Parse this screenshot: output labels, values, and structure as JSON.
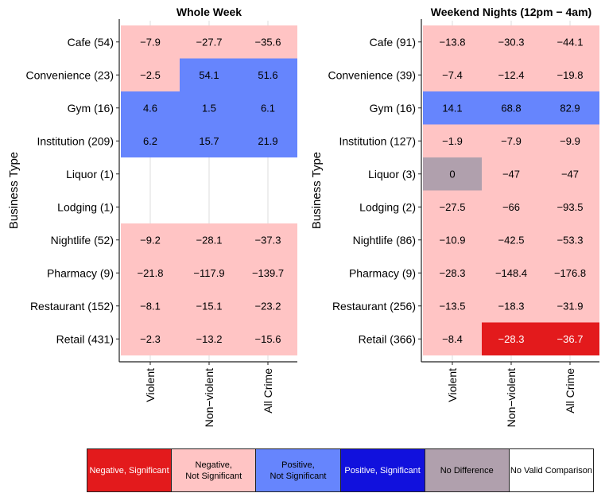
{
  "chart_data": [
    {
      "type": "heatmap",
      "title": "Whole Week",
      "ylabel": "Business Type",
      "xlabel": "",
      "x_categories": [
        "Violent",
        "Non−violent",
        "All Crime"
      ],
      "y_categories": [
        "Cafe (54)",
        "Convenience (23)",
        "Gym (16)",
        "Institution (209)",
        "Liquor (1)",
        "Lodging (1)",
        "Nightlife (52)",
        "Pharmacy (9)",
        "Restaurant (152)",
        "Retail (431)"
      ],
      "values": [
        [
          "−7.9",
          "−27.7",
          "−35.6"
        ],
        [
          "−2.5",
          "54.1",
          "51.6"
        ],
        [
          "4.6",
          "1.5",
          "6.1"
        ],
        [
          "6.2",
          "15.7",
          "21.9"
        ],
        [
          null,
          null,
          null
        ],
        [
          null,
          null,
          null
        ],
        [
          "−9.2",
          "−28.1",
          "−37.3"
        ],
        [
          "−21.8",
          "−117.9",
          "−139.7"
        ],
        [
          "−8.1",
          "−15.1",
          "−23.2"
        ],
        [
          "−2.3",
          "−13.2",
          "−15.6"
        ]
      ],
      "categories": [
        [
          "neg_ns",
          "neg_ns",
          "neg_ns"
        ],
        [
          "neg_ns",
          "pos_ns",
          "pos_ns"
        ],
        [
          "pos_ns",
          "pos_ns",
          "pos_ns"
        ],
        [
          "pos_ns",
          "pos_ns",
          "pos_ns"
        ],
        [
          "none",
          "none",
          "none"
        ],
        [
          "none",
          "none",
          "none"
        ],
        [
          "neg_ns",
          "neg_ns",
          "neg_ns"
        ],
        [
          "neg_ns",
          "neg_ns",
          "neg_ns"
        ],
        [
          "neg_ns",
          "neg_ns",
          "neg_ns"
        ],
        [
          "neg_ns",
          "neg_ns",
          "neg_ns"
        ]
      ]
    },
    {
      "type": "heatmap",
      "title": "Weekend Nights (12pm − 4am)",
      "ylabel": "Business Type",
      "xlabel": "",
      "x_categories": [
        "Violent",
        "Non−violent",
        "All Crime"
      ],
      "y_categories": [
        "Cafe (91)",
        "Convenience (39)",
        "Gym (16)",
        "Institution (127)",
        "Liquor (3)",
        "Lodging (2)",
        "Nightlife (86)",
        "Pharmacy (9)",
        "Restaurant (256)",
        "Retail (366)"
      ],
      "values": [
        [
          "−13.8",
          "−30.3",
          "−44.1"
        ],
        [
          "−7.4",
          "−12.4",
          "−19.8"
        ],
        [
          "14.1",
          "68.8",
          "82.9"
        ],
        [
          "−1.9",
          "−7.9",
          "−9.9"
        ],
        [
          "0",
          "−47",
          "−47"
        ],
        [
          "−27.5",
          "−66",
          "−93.5"
        ],
        [
          "−10.9",
          "−42.5",
          "−53.3"
        ],
        [
          "−28.3",
          "−148.4",
          "−176.8"
        ],
        [
          "−13.5",
          "−18.3",
          "−31.9"
        ],
        [
          "−8.4",
          "−28.3",
          "−36.7"
        ]
      ],
      "categories": [
        [
          "neg_ns",
          "neg_ns",
          "neg_ns"
        ],
        [
          "neg_ns",
          "neg_ns",
          "neg_ns"
        ],
        [
          "pos_ns",
          "pos_ns",
          "pos_ns"
        ],
        [
          "neg_ns",
          "neg_ns",
          "neg_ns"
        ],
        [
          "nodiff",
          "neg_ns",
          "neg_ns"
        ],
        [
          "neg_ns",
          "neg_ns",
          "neg_ns"
        ],
        [
          "neg_ns",
          "neg_ns",
          "neg_ns"
        ],
        [
          "neg_ns",
          "neg_ns",
          "neg_ns"
        ],
        [
          "neg_ns",
          "neg_ns",
          "neg_ns"
        ],
        [
          "neg_ns",
          "neg_sig",
          "neg_sig"
        ]
      ]
    }
  ],
  "legend": [
    {
      "key": "neg_sig",
      "label": "Negative, Significant",
      "color": "#e31a1c",
      "text_color": "#ffffff"
    },
    {
      "key": "neg_ns",
      "label": "Negative,\nNot Significant",
      "color": "#ffc4c4",
      "text_color": "#000000"
    },
    {
      "key": "pos_ns",
      "label": "Positive,\nNot Significant",
      "color": "#6685fd",
      "text_color": "#000000"
    },
    {
      "key": "pos_sig",
      "label": "Positive, Significant",
      "color": "#1111dd",
      "text_color": "#ffffff"
    },
    {
      "key": "nodiff",
      "label": "No Difference",
      "color": "#b0a0ad",
      "text_color": "#000000"
    },
    {
      "key": "none",
      "label": "No Valid Comparison",
      "color": "#ffffff",
      "text_color": "#000000"
    }
  ]
}
